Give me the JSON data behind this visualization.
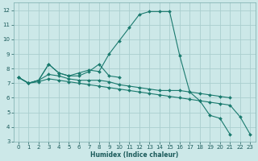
{
  "background_color": "#cce8e8",
  "grid_color": "#aacece",
  "line_color": "#1a7a6e",
  "xlabel": "Humidex (Indice chaleur)",
  "xlim": [
    -0.5,
    23.5
  ],
  "ylim": [
    3,
    12.5
  ],
  "yticks": [
    3,
    4,
    5,
    6,
    7,
    8,
    9,
    10,
    11,
    12
  ],
  "xticks": [
    0,
    1,
    2,
    3,
    4,
    5,
    6,
    7,
    8,
    9,
    10,
    11,
    12,
    13,
    14,
    15,
    16,
    17,
    18,
    19,
    20,
    21,
    22,
    23
  ],
  "series": [
    {
      "x": [
        0,
        1,
        2,
        3,
        4,
        5,
        6,
        7,
        8,
        9,
        10,
        11,
        12,
        13,
        14,
        15,
        16,
        17,
        18,
        19,
        20,
        21
      ],
      "y": [
        7.4,
        7.0,
        7.2,
        8.3,
        7.7,
        7.5,
        7.7,
        7.9,
        7.8,
        9.0,
        9.9,
        10.8,
        11.7,
        11.9,
        11.9,
        11.9,
        8.9,
        6.4,
        5.8,
        4.8,
        4.6,
        3.5
      ]
    },
    {
      "x": [
        0,
        1,
        2,
        3,
        4,
        5,
        6,
        7,
        8,
        9,
        10
      ],
      "y": [
        7.4,
        7.0,
        7.2,
        8.3,
        7.7,
        7.5,
        7.5,
        7.8,
        8.3,
        7.5,
        7.4
      ]
    },
    {
      "x": [
        0,
        1,
        2,
        3,
        4,
        5,
        6,
        7,
        8,
        9,
        10,
        11,
        12,
        13,
        14,
        15,
        16,
        17,
        18,
        19,
        20,
        21
      ],
      "y": [
        7.4,
        7.0,
        7.2,
        7.6,
        7.5,
        7.3,
        7.2,
        7.2,
        7.2,
        7.1,
        6.9,
        6.8,
        6.7,
        6.6,
        6.5,
        6.5,
        6.5,
        6.4,
        6.3,
        6.2,
        6.1,
        6.0
      ]
    },
    {
      "x": [
        0,
        1,
        2,
        3,
        4,
        5,
        6,
        7,
        8,
        9,
        10,
        11,
        12,
        13,
        14,
        15,
        16,
        17,
        18,
        19,
        20,
        21,
        22,
        23
      ],
      "y": [
        7.4,
        7.0,
        7.1,
        7.3,
        7.2,
        7.1,
        7.0,
        6.9,
        6.8,
        6.7,
        6.6,
        6.5,
        6.4,
        6.3,
        6.2,
        6.1,
        6.0,
        5.9,
        5.8,
        5.7,
        5.6,
        5.5,
        4.7,
        3.5
      ]
    }
  ]
}
